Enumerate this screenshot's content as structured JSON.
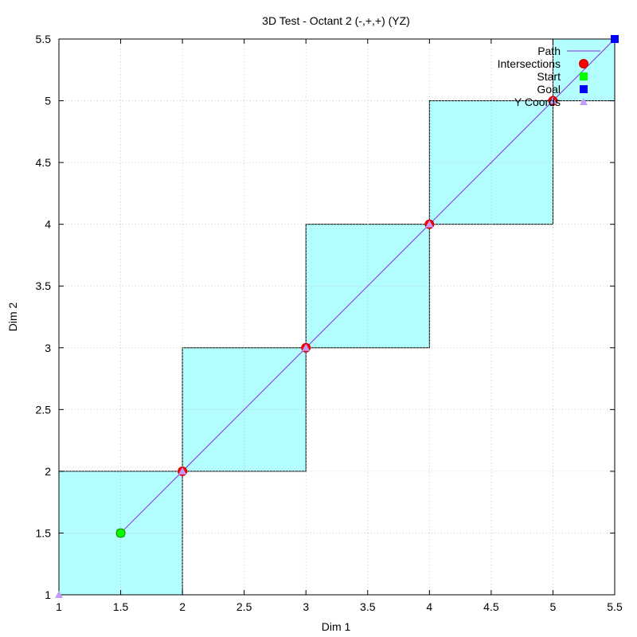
{
  "chart_data": {
    "type": "line",
    "title": "3D Test - Octant 2 (-,+,+) (YZ)",
    "xlabel": "Dim 1",
    "ylabel": "Dim 2",
    "xlim": [
      1,
      5.5
    ],
    "ylim": [
      1,
      5.5
    ],
    "x_ticks": [
      "1",
      "1.5",
      "2",
      "2.5",
      "3",
      "3.5",
      "4",
      "4.5",
      "5",
      "5.5"
    ],
    "y_ticks": [
      "1",
      "1.5",
      "2",
      "2.5",
      "3",
      "3.5",
      "4",
      "4.5",
      "5",
      "5.5"
    ],
    "x_tick_values": [
      1,
      1.5,
      2,
      2.5,
      3,
      3.5,
      4,
      4.5,
      5,
      5.5
    ],
    "y_tick_values": [
      1,
      1.5,
      2,
      2.5,
      3,
      3.5,
      4,
      4.5,
      5,
      5.5
    ],
    "grid": true,
    "legend_position": "top-right",
    "cells": [
      {
        "x0": 1,
        "y0": 1,
        "x1": 2,
        "y1": 2
      },
      {
        "x0": 2,
        "y0": 2,
        "x1": 3,
        "y1": 3
      },
      {
        "x0": 3,
        "y0": 3,
        "x1": 4,
        "y1": 4
      },
      {
        "x0": 4,
        "y0": 4,
        "x1": 5,
        "y1": 5
      },
      {
        "x0": 5,
        "y0": 5,
        "x1": 5.5,
        "y1": 5.5
      }
    ],
    "cell_color": "#b3ffff",
    "series": [
      {
        "name": "Path",
        "kind": "line",
        "color": "#8a2be2",
        "x": [
          1.5,
          5.5
        ],
        "y": [
          1.5,
          5.5
        ]
      },
      {
        "name": "Intersections",
        "kind": "circle",
        "color": "#ff0000",
        "x": [
          2,
          3,
          4,
          5
        ],
        "y": [
          2,
          3,
          4,
          5
        ]
      },
      {
        "name": "Start",
        "kind": "square",
        "color": "#00ff00",
        "x": [
          1.5
        ],
        "y": [
          1.5
        ]
      },
      {
        "name": "Goal",
        "kind": "square",
        "color": "#0000ff",
        "x": [
          5.5
        ],
        "y": [
          5.5
        ]
      },
      {
        "name": "Y Coords",
        "kind": "triangle",
        "color": "#c39bff",
        "x": [
          1,
          2,
          3,
          4,
          5
        ],
        "y": [
          1,
          2,
          3,
          4,
          5
        ]
      }
    ]
  }
}
